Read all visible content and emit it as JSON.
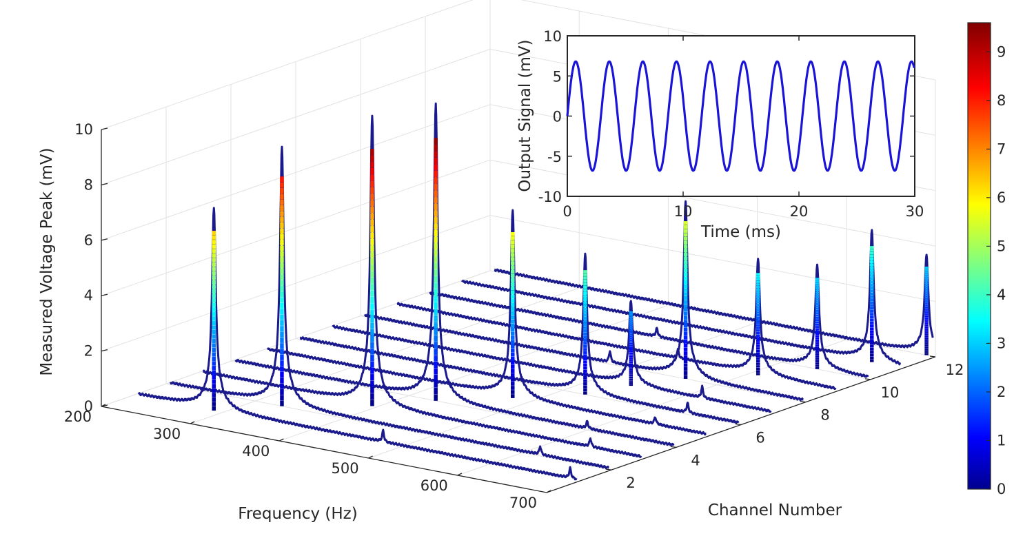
{
  "chart_data": [
    {
      "type": "line",
      "subtype": "3d-waterfall",
      "title": "",
      "xlabel": "Frequency (Hz)",
      "ylabel": "Channel Number",
      "zlabel": "Measured Voltage Peak (mV)",
      "xlim": [
        200,
        700
      ],
      "ylim": [
        0,
        12
      ],
      "zlim": [
        0,
        10
      ],
      "x_ticks": [
        "200",
        "300",
        "400",
        "500",
        "600",
        "700"
      ],
      "y_ticks": [
        "2",
        "4",
        "6",
        "8",
        "10",
        "12"
      ],
      "z_ticks": [
        "0",
        "2",
        "4",
        "6",
        "8",
        "10"
      ],
      "grid": true,
      "colormap": "jet",
      "colorbar": {
        "min": 0,
        "max": 9.6,
        "ticks": [
          "0",
          "1",
          "2",
          "3",
          "4",
          "5",
          "6",
          "7",
          "8",
          "9"
        ]
      },
      "series": [
        {
          "channel": 1,
          "peak_freq": 290,
          "peak_value": 6.5,
          "secondary": [
            {
              "freq": 480,
              "value": 0.4
            },
            {
              "freq": 690,
              "value": 0.35
            }
          ]
        },
        {
          "channel": 2,
          "peak_freq": 330,
          "peak_value": 8.3,
          "secondary": [
            {
              "freq": 620,
              "value": 0.3
            }
          ]
        },
        {
          "channel": 3,
          "peak_freq": 395,
          "peak_value": 9.3,
          "secondary": [
            {
              "freq": 640,
              "value": 0.3
            }
          ]
        },
        {
          "channel": 4,
          "peak_freq": 430,
          "peak_value": 9.5,
          "secondary": [
            {
              "freq": 600,
              "value": 0.25
            }
          ]
        },
        {
          "channel": 5,
          "peak_freq": 480,
          "peak_value": 6.0,
          "secondary": [
            {
              "freq": 640,
              "value": 0.25
            }
          ]
        },
        {
          "channel": 6,
          "peak_freq": 525,
          "peak_value": 4.5,
          "secondary": [
            {
              "freq": 640,
              "value": 0.35
            }
          ]
        },
        {
          "channel": 7,
          "peak_freq": 540,
          "peak_value": 2.7,
          "secondary": [
            {
              "freq": 620,
              "value": 0.4
            }
          ]
        },
        {
          "channel": 8,
          "peak_freq": 565,
          "peak_value": 5.7,
          "secondary": [
            {
              "freq": 480,
              "value": 0.4
            }
          ]
        },
        {
          "channel": 9,
          "peak_freq": 610,
          "peak_value": 3.7,
          "secondary": [
            {
              "freq": 520,
              "value": 0.3
            }
          ]
        },
        {
          "channel": 10,
          "peak_freq": 640,
          "peak_value": 3.3,
          "secondary": [
            {
              "freq": 460,
              "value": 0.3
            }
          ]
        },
        {
          "channel": 11,
          "peak_freq": 665,
          "peak_value": 4.2,
          "secondary": []
        },
        {
          "channel": 12,
          "peak_freq": 690,
          "peak_value": 3.2,
          "secondary": []
        }
      ]
    },
    {
      "type": "line",
      "title": "",
      "xlabel": "Time (ms)",
      "ylabel": "Output Signal (mV)",
      "xlim": [
        0,
        30
      ],
      "ylim": [
        -10,
        10
      ],
      "x_ticks": [
        "0",
        "10",
        "20",
        "30"
      ],
      "y_ticks": [
        "-10",
        "-5",
        "0",
        "5",
        "10"
      ],
      "series": [
        {
          "amplitude_mV": 6.8,
          "period_ms": 2.9,
          "start_value": 0,
          "color": "#1a14d6"
        }
      ]
    }
  ],
  "colors": {
    "line3d": "#1a1a8c",
    "inset_line": "#1a14d6",
    "axis": "#262626",
    "grid": "#e2e2e2"
  }
}
